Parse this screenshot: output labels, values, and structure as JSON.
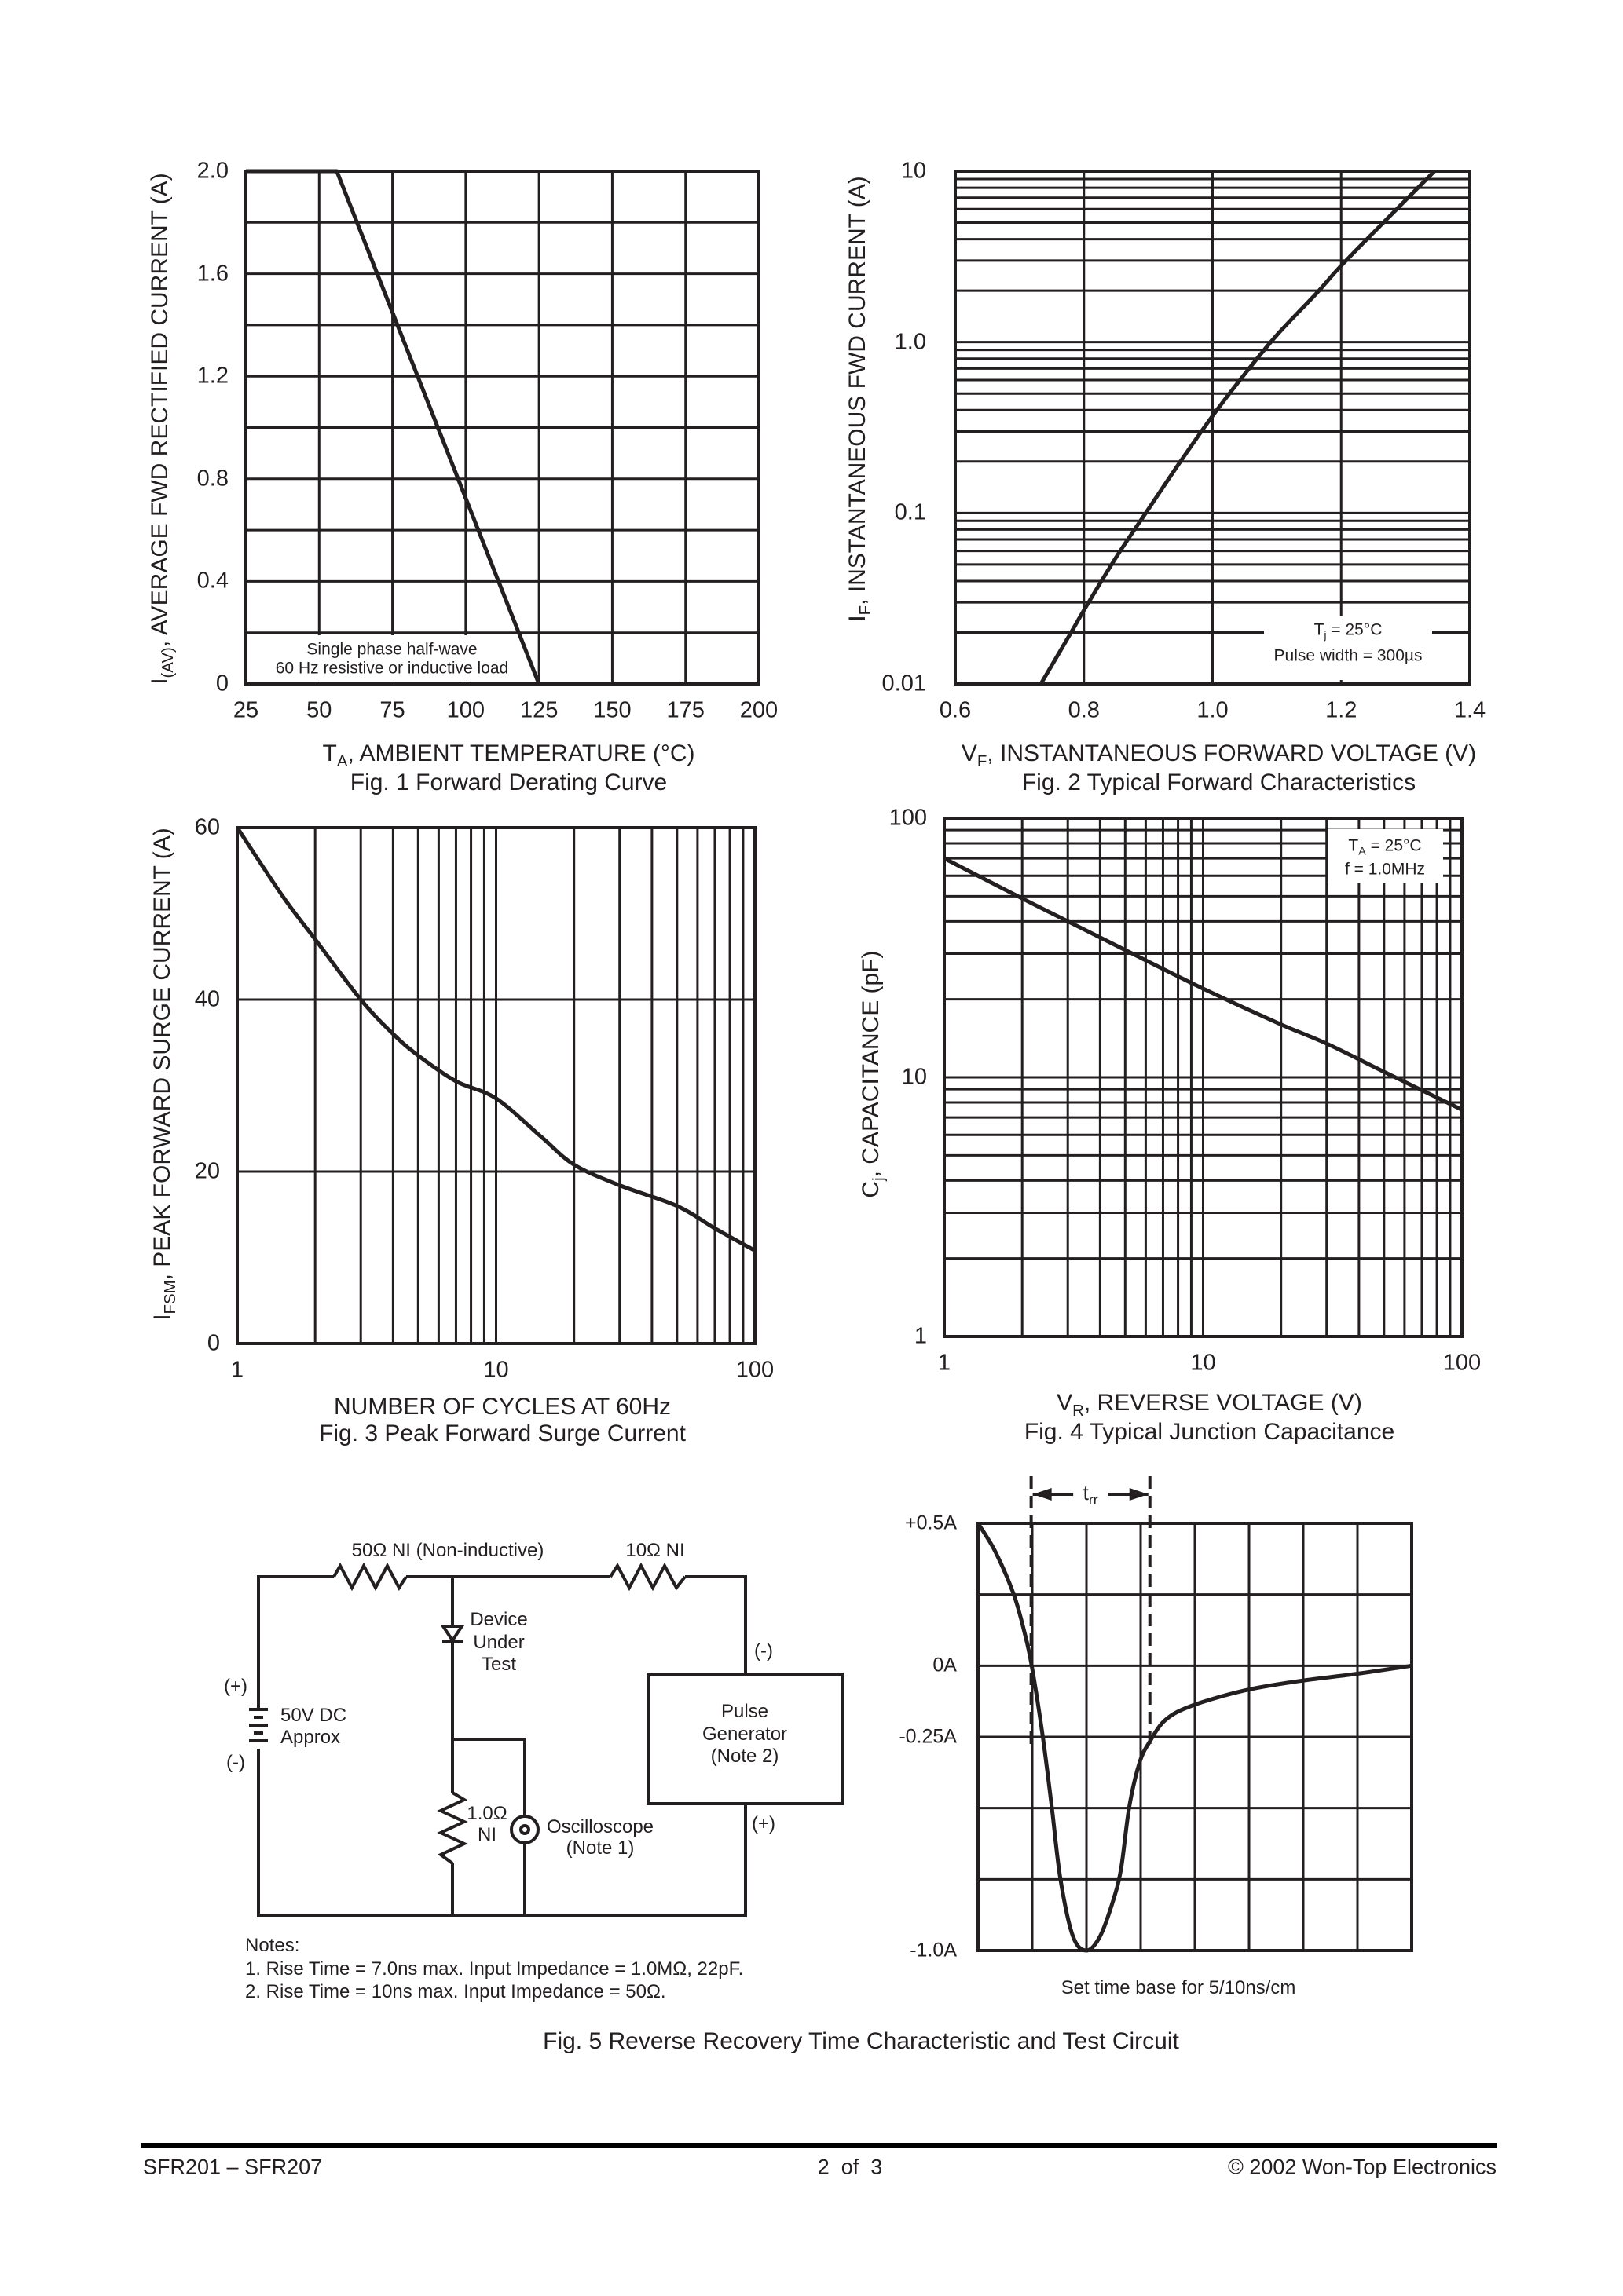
{
  "chart_data": [
    {
      "type": "line",
      "title": "Fig. 1  Forward Derating Curve",
      "xlabel": {
        "main": "T",
        "sub": "A",
        "rest": ", AMBIENT TEMPERATURE (°C)"
      },
      "ylabel": {
        "main": "I",
        "sub": "(AV)",
        "rest": ", AVERAGE FWD RECTIFIED CURRENT (A)"
      },
      "xscale": "linear",
      "yscale": "linear",
      "xlim": [
        25,
        200
      ],
      "ylim": [
        0,
        2.0
      ],
      "grid": true,
      "x_grid_step": 25,
      "y_grid_step": 0.2,
      "x_ticks": [
        {
          "value": 25,
          "label": "25"
        },
        {
          "value": 50,
          "label": "50"
        },
        {
          "value": 75,
          "label": "75"
        },
        {
          "value": 100,
          "label": "100"
        },
        {
          "value": 125,
          "label": "125"
        },
        {
          "value": 150,
          "label": "150"
        },
        {
          "value": 175,
          "label": "175"
        },
        {
          "value": 200,
          "label": "200"
        }
      ],
      "y_ticks": [
        {
          "value": 0,
          "label": "0"
        },
        {
          "value": 0.4,
          "label": "0.4"
        },
        {
          "value": 0.8,
          "label": "0.8"
        },
        {
          "value": 1.2,
          "label": "1.2"
        },
        {
          "value": 1.6,
          "label": "1.6"
        },
        {
          "value": 2.0,
          "label": "2.0"
        }
      ],
      "annotation": [
        {
          "main": "Single phase half-wave"
        },
        {
          "main": "60 Hz resistive or inductive load"
        }
      ],
      "series": [
        {
          "x": [
            25,
            56,
            125
          ],
          "y": [
            2.0,
            2.0,
            0
          ]
        }
      ]
    },
    {
      "type": "line",
      "title": "Fig. 2  Typical Forward Characteristics",
      "xlabel": {
        "main": "V",
        "sub": "F",
        "rest": ", INSTANTANEOUS FORWARD VOLTAGE (V)"
      },
      "ylabel": {
        "main": "I",
        "sub": "F",
        "rest": ", INSTANTANEOUS FWD CURRENT (A)"
      },
      "xscale": "linear",
      "yscale": "log",
      "xlim": [
        0.6,
        1.4
      ],
      "ylim": [
        0.01,
        10
      ],
      "grid": true,
      "x_grid_step": 0.2,
      "x_ticks": [
        {
          "value": 0.6,
          "label": "0.6"
        },
        {
          "value": 0.8,
          "label": "0.8"
        },
        {
          "value": 1.0,
          "label": "1.0"
        },
        {
          "value": 1.2,
          "label": "1.2"
        },
        {
          "value": 1.4,
          "label": "1.4"
        }
      ],
      "y_ticks": [
        {
          "value": 0.01,
          "label": "0.01"
        },
        {
          "value": 0.1,
          "label": "0.1"
        },
        {
          "value": 1,
          "label": "1.0"
        },
        {
          "value": 10,
          "label": "10"
        }
      ],
      "annotation": [
        {
          "main": "T",
          "sub": "j",
          "rest": " = 25°C"
        },
        {
          "main": "Pulse width = 300µs"
        }
      ],
      "series": [
        {
          "x": [
            0.733,
            0.78,
            0.8,
            0.85,
            0.9,
            0.95,
            1.0,
            1.05,
            1.1,
            1.16,
            1.2,
            1.27,
            1.345
          ],
          "y": [
            0.01,
            0.02,
            0.027,
            0.055,
            0.105,
            0.2,
            0.37,
            0.65,
            1.1,
            1.9,
            2.8,
            5.2,
            10
          ]
        }
      ]
    },
    {
      "type": "line",
      "title": "Fig. 3  Peak Forward Surge Current",
      "xlabel": {
        "main": "NUMBER OF CYCLES AT 60Hz"
      },
      "ylabel": {
        "main": "I",
        "sub": "FSM",
        "rest": ", PEAK FORWARD SURGE CURRENT (A)"
      },
      "xscale": "log",
      "yscale": "linear",
      "xlim": [
        1,
        100
      ],
      "ylim": [
        0,
        60
      ],
      "grid": true,
      "y_grid_step": 20,
      "x_ticks": [
        {
          "value": 1,
          "label": "1"
        },
        {
          "value": 10,
          "label": "10"
        },
        {
          "value": 100,
          "label": "100"
        }
      ],
      "y_ticks": [
        {
          "value": 0,
          "label": "0"
        },
        {
          "value": 20,
          "label": "20"
        },
        {
          "value": 40,
          "label": "40"
        },
        {
          "value": 60,
          "label": "60"
        }
      ],
      "series": [
        {
          "x": [
            1,
            1.5,
            2,
            3,
            4,
            5,
            7,
            10,
            15,
            20,
            30,
            50,
            70,
            100
          ],
          "y": [
            60,
            52,
            47,
            40,
            36,
            33.5,
            30.5,
            28.5,
            24,
            20.8,
            18.4,
            16,
            13.4,
            10.8
          ]
        }
      ]
    },
    {
      "type": "line",
      "title": "Fig. 4  Typical Junction Capacitance",
      "xlabel": {
        "main": "V",
        "sub": "R",
        "rest": ", REVERSE VOLTAGE (V)"
      },
      "ylabel": {
        "main": "C",
        "sub": "j",
        "rest": ", CAPACITANCE (pF)"
      },
      "xscale": "log",
      "yscale": "log",
      "xlim": [
        1,
        100
      ],
      "ylim": [
        1,
        100
      ],
      "grid": true,
      "x_ticks": [
        {
          "value": 1,
          "label": "1"
        },
        {
          "value": 10,
          "label": "10"
        },
        {
          "value": 100,
          "label": "100"
        }
      ],
      "y_ticks": [
        {
          "value": 1,
          "label": "1"
        },
        {
          "value": 10,
          "label": "10"
        },
        {
          "value": 100,
          "label": "100"
        }
      ],
      "annotation": [
        {
          "main": "T",
          "sub": "A",
          "rest": " = 25°C"
        },
        {
          "main": "f = 1.0MHz"
        }
      ],
      "series": [
        {
          "x": [
            1,
            2,
            3,
            5,
            10,
            20,
            30,
            50,
            100
          ],
          "y": [
            70,
            49,
            40,
            31,
            22,
            16,
            13.5,
            10.5,
            7.5
          ]
        }
      ]
    },
    {
      "type": "line",
      "title": "Fig. 5  Reverse Recovery Time Characteristic and Test Circuit",
      "note": "Set time base for 5/10ns/cm",
      "xscale": "linear",
      "yscale": "linear",
      "xlim": [
        0,
        8
      ],
      "ylim": [
        -1.0,
        0.5
      ],
      "grid": true,
      "x_grid_step": 1,
      "y_grid_step": 0.25,
      "y_ticks": [
        {
          "value": 0.5,
          "label": "+0.5A"
        },
        {
          "value": 0,
          "label": "0A"
        },
        {
          "value": -0.25,
          "label": "-0.25A"
        },
        {
          "value": -1.0,
          "label": "-1.0A"
        }
      ],
      "trr_markers": [
        0.98,
        3.17
      ],
      "trr_label": {
        "main": "t",
        "sub": "rr"
      },
      "series": [
        {
          "x": [
            0,
            0.32,
            0.66,
            0.86,
            0.99,
            1.19,
            1.36,
            1.52,
            1.75,
            2.0,
            2.25,
            2.5,
            2.64,
            2.79,
            2.98,
            3.17,
            3.46,
            3.95,
            4.91,
            5.88,
            7.0,
            8.0
          ],
          "y": [
            0.5,
            0.4,
            0.25,
            0.115,
            0.0,
            -0.243,
            -0.495,
            -0.75,
            -0.95,
            -1.0,
            -0.95,
            -0.82,
            -0.71,
            -0.495,
            -0.34,
            -0.266,
            -0.19,
            -0.14,
            -0.087,
            -0.055,
            -0.028,
            0.0
          ]
        }
      ]
    }
  ],
  "circuit": {
    "r50_label": "50Ω NI (Non-inductive)",
    "r10_label": "10Ω NI",
    "dut_label": [
      "Device",
      "Under",
      "Test"
    ],
    "battery_plus": "(+)",
    "battery_minus": "(-)",
    "battery_label": [
      "50V DC",
      "Approx"
    ],
    "r1_label": [
      "1.0Ω",
      "NI"
    ],
    "scope_label": [
      "Oscilloscope",
      "(Note 1)"
    ],
    "gen_label": [
      "Pulse",
      "Generator",
      "(Note 2)"
    ],
    "gen_minus": "(-)",
    "gen_plus": "(+)",
    "notes": [
      "Notes:",
      "1. Rise Time = 7.0ns max. Input Impedance = 1.0MΩ, 22pF.",
      "2. Rise Time = 10ns max. Input Impedance = 50Ω."
    ]
  },
  "footer": {
    "left": "SFR201 – SFR207",
    "center": "2  of  3",
    "right": "© 2002 Won-Top Electronics"
  },
  "colors": {
    "ink": "#231f20",
    "paper": "#ffffff"
  }
}
